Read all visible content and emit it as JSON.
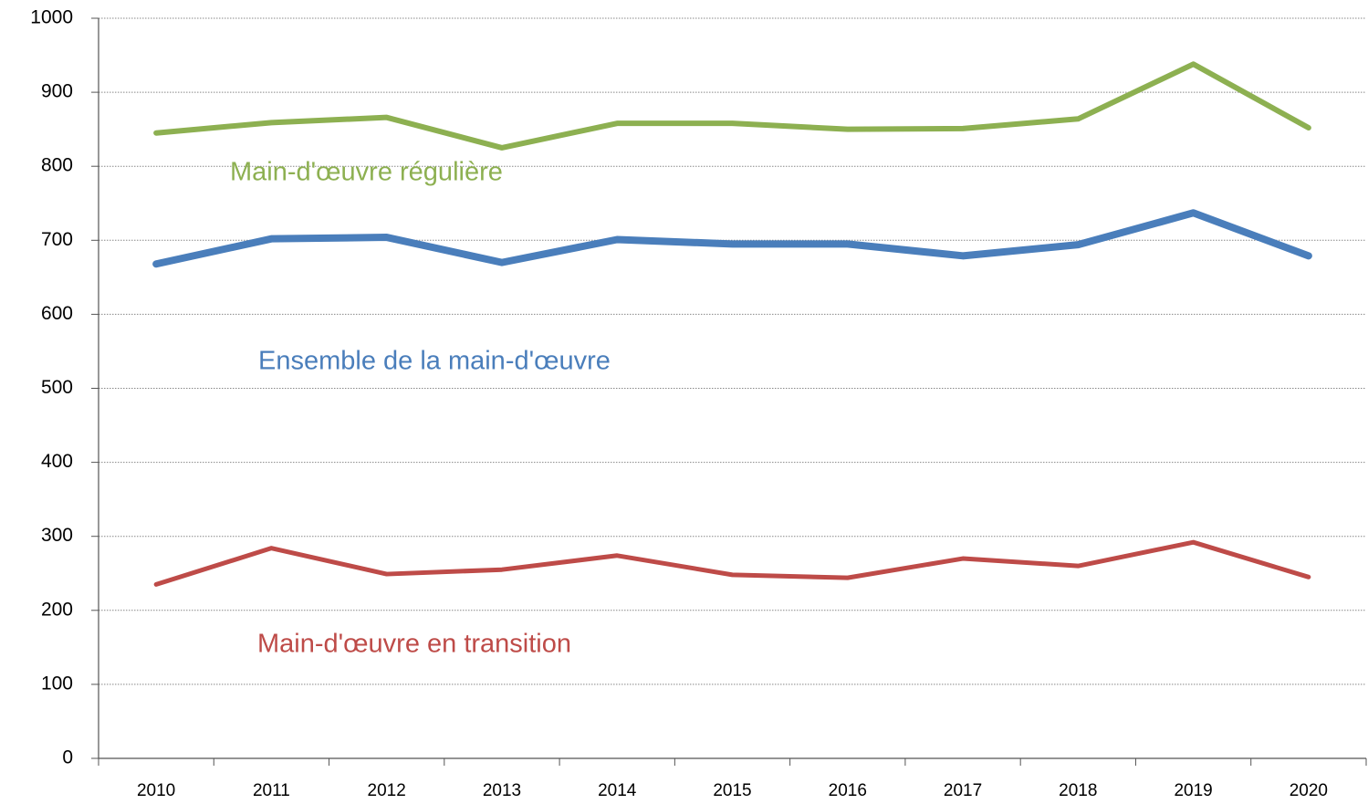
{
  "chart_data": {
    "type": "line",
    "categories": [
      "2010",
      "2011",
      "2012",
      "2013",
      "2014",
      "2015",
      "2016",
      "2017",
      "2018",
      "2019",
      "2020"
    ],
    "series": [
      {
        "name": "Main-d'œuvre régulière",
        "color": "#8db051",
        "values": [
          845,
          859,
          866,
          825,
          858,
          858,
          850,
          851,
          864,
          938,
          852
        ]
      },
      {
        "name": "Ensemble de la main-d'œuvre",
        "color": "#4a7ebb",
        "values": [
          668,
          702,
          704,
          670,
          701,
          695,
          695,
          679,
          694,
          737,
          679
        ]
      },
      {
        "name": "Main-d'œuvre en transition",
        "color": "#be4b48",
        "values": [
          235,
          284,
          249,
          255,
          274,
          248,
          244,
          270,
          260,
          292,
          245
        ]
      }
    ],
    "ylim": [
      0,
      1000
    ],
    "yticks": [
      0,
      100,
      200,
      300,
      400,
      500,
      600,
      700,
      800,
      900,
      1000
    ],
    "grid": true
  }
}
